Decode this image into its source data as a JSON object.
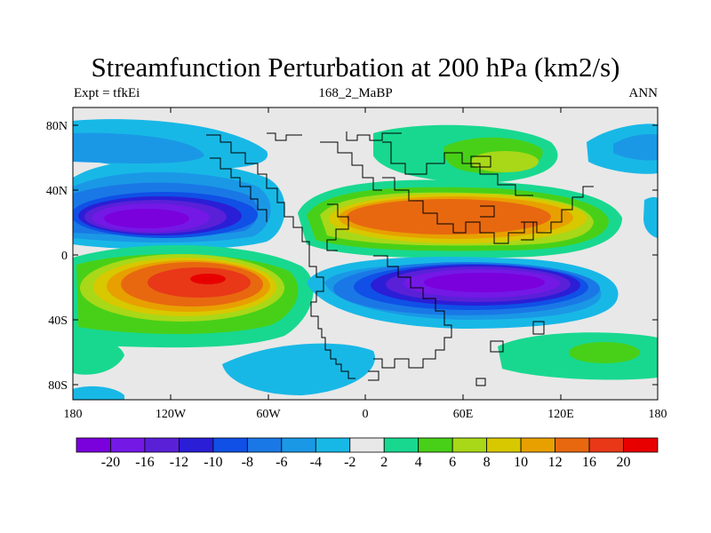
{
  "title": "Streamfunction Perturbation at 200 hPa (km2/s)",
  "left_label": "Expt = tfkEi",
  "center_label": "168_2_MaBP",
  "right_label": "ANN",
  "map": {
    "lat_ticks": [
      "80N",
      "40N",
      "0",
      "40S",
      "80S"
    ],
    "lon_ticks": [
      "180",
      "120W",
      "60W",
      "0",
      "60E",
      "120E",
      "180"
    ]
  },
  "colorbar": {
    "colors": [
      "#7a00dc",
      "#7418e6",
      "#5a20d8",
      "#2a1ed6",
      "#1050e6",
      "#1a78e6",
      "#1a98e6",
      "#18b8e6",
      "#e8e8e8",
      "#18d890",
      "#48d018",
      "#a8d818",
      "#d8c800",
      "#e8a000",
      "#e86810",
      "#e83818",
      "#e80000"
    ],
    "labels": [
      "-20",
      "-16",
      "-12",
      "-10",
      "-8",
      "-6",
      "-4",
      "-2",
      "2",
      "4",
      "6",
      "8",
      "10",
      "12",
      "16",
      "20"
    ]
  },
  "chart_data": {
    "type": "heatmap",
    "title": "Streamfunction Perturbation at 200 hPa (km2/s)",
    "subtitle": "168_2_MaBP",
    "annotations": [
      "Expt = tfkEi",
      "ANN"
    ],
    "x_range": [
      -180,
      180
    ],
    "y_range": [
      -90,
      90
    ],
    "x_ticks": [
      "180",
      "120W",
      "60W",
      "0",
      "60E",
      "120E",
      "180"
    ],
    "y_ticks": [
      "80N",
      "40N",
      "0",
      "40S",
      "80S"
    ],
    "levels": [
      -20,
      -16,
      -12,
      -10,
      -8,
      -6,
      -4,
      -2,
      2,
      4,
      6,
      8,
      10,
      12,
      16,
      20
    ],
    "features": [
      {
        "lon": -100,
        "lat": 25,
        "value": -20
      },
      {
        "lon": -97,
        "lat": -15,
        "value": 20
      },
      {
        "lon": 50,
        "lat": 22,
        "value": 16
      },
      {
        "lon": 60,
        "lat": -18,
        "value": -20
      },
      {
        "lon": 80,
        "lat": 57,
        "value": 8
      },
      {
        "lon": -150,
        "lat": 65,
        "value": -4
      },
      {
        "lon": 160,
        "lat": 67,
        "value": -4
      },
      {
        "lon": 140,
        "lat": -60,
        "value": 6
      }
    ]
  }
}
